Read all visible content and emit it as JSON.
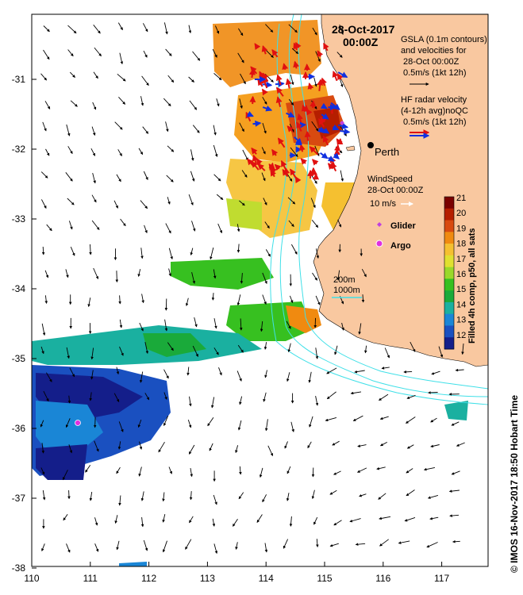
{
  "title": {
    "date": "28-Oct-2017",
    "time": "00:00Z"
  },
  "axes": {
    "x_ticks": [
      "110",
      "111",
      "112",
      "113",
      "114",
      "115",
      "116",
      "117"
    ],
    "y_ticks": [
      "-31",
      "-32",
      "-33",
      "-34",
      "-35",
      "-36",
      "-37",
      "-38"
    ]
  },
  "legend": {
    "gsla_line1": "GSLA (0.1m contours)",
    "gsla_line2": "and velocities for",
    "gsla_line3": "28-Oct 00:00Z",
    "gsla_scale": "0.5m/s (1kt 12h)",
    "hf_line1": "HF radar velocity",
    "hf_line2": "(4-12h avg)noQC",
    "hf_scale": "0.5m/s (1kt 12h)",
    "wind_line1": "WindSpeed",
    "wind_line2": "28-Oct 00:00Z",
    "wind_scale": "10 m/s",
    "glider": "Glider",
    "argo": "Argo",
    "depth_200": "200m",
    "depth_1000": "1000m"
  },
  "city": {
    "name": "Perth"
  },
  "colorbar": {
    "label": "Filled 4h comp, p50, all sats",
    "ticks": [
      "21",
      "20",
      "19",
      "18",
      "17",
      "16",
      "15",
      "14",
      "13",
      "12"
    ],
    "colors": [
      "#7a0000",
      "#b51e00",
      "#d84a10",
      "#f08a10",
      "#f5c030",
      "#e0e030",
      "#9ad82a",
      "#37c020",
      "#1aaa3a",
      "#1ab0a0",
      "#1a86d6",
      "#1a50c0",
      "#141e8a"
    ]
  },
  "credit": "© IMOS 16-Nov-2017 18:50 Hobart Time",
  "colors": {
    "land": "#f9c8a0",
    "isobath": "#40e0e8",
    "hf_red": "#e01010",
    "hf_blue": "#1030e0",
    "glider": "#c040e0",
    "argo": "#e030e0"
  }
}
